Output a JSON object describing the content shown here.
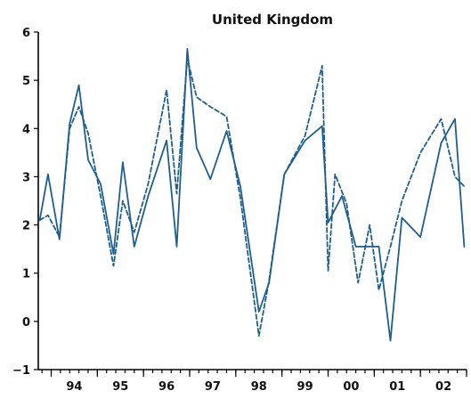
{
  "chart_data": {
    "type": "line",
    "title": "United Kingdom",
    "xlabel": "",
    "ylabel": "",
    "ylim": [
      -1,
      6
    ],
    "xlim": [
      1993.72,
      2003.0
    ],
    "yticks": [
      -1,
      0,
      1,
      2,
      3,
      4,
      5,
      6
    ],
    "ytick_labels": [
      "−1",
      "0",
      "1",
      "2",
      "3",
      "4",
      "5",
      "6"
    ],
    "xtick_labels": [
      {
        "label": "94",
        "x": 1994.5
      },
      {
        "label": "95",
        "x": 1995.5
      },
      {
        "label": "96",
        "x": 1996.5
      },
      {
        "label": "97",
        "x": 1997.5
      },
      {
        "label": "98",
        "x": 1998.5
      },
      {
        "label": "99",
        "x": 1999.5
      },
      {
        "label": "00",
        "x": 2000.5
      },
      {
        "label": "01",
        "x": 2001.5
      },
      {
        "label": "02",
        "x": 2002.5
      }
    ],
    "minor_ticks": {
      "start": 1993.8,
      "end": 2003.0,
      "step": 0.2
    },
    "major_ticks": [
      1994,
      1995,
      1996,
      1997,
      1998,
      1999,
      2000,
      2001,
      2002,
      2003
    ],
    "series": [
      {
        "style": "solid",
        "color": "#1f5f8e",
        "x": [
          1993.75,
          1993.93,
          1994.18,
          1994.4,
          1994.6,
          1994.8,
          1995.07,
          1995.35,
          1995.55,
          1995.8,
          1996.1,
          1996.5,
          1996.72,
          1996.95,
          1997.15,
          1997.45,
          1997.8,
          1998.1,
          1998.5,
          1998.72,
          1999.05,
          1999.5,
          1999.87,
          2000.0,
          2000.3,
          2000.6,
          2000.9,
          2001.1,
          2001.35,
          2001.6,
          2002.0,
          2002.45,
          2002.75,
          2002.95
        ],
        "y": [
          2.1,
          3.05,
          1.7,
          4.1,
          4.9,
          3.35,
          2.85,
          1.4,
          3.3,
          1.55,
          2.6,
          3.75,
          1.55,
          5.65,
          3.6,
          2.95,
          3.95,
          2.8,
          0.2,
          0.8,
          3.05,
          3.75,
          4.05,
          2.05,
          2.6,
          1.55,
          1.55,
          1.55,
          -0.4,
          2.15,
          1.75,
          3.7,
          4.2,
          1.55
        ]
      },
      {
        "style": "dashed",
        "color": "#1f5f8e",
        "x": [
          1993.75,
          1993.93,
          1994.18,
          1994.4,
          1994.6,
          1994.8,
          1995.07,
          1995.35,
          1995.55,
          1995.8,
          1996.1,
          1996.5,
          1996.72,
          1996.95,
          1997.15,
          1997.45,
          1997.8,
          1998.1,
          1998.5,
          1998.72,
          1999.05,
          1999.5,
          1999.87,
          2000.0,
          2000.15,
          2000.4,
          2000.65,
          2000.9,
          2001.1,
          2001.35,
          2001.6,
          2002.0,
          2002.45,
          2002.75,
          2002.95
        ],
        "y": [
          2.1,
          2.2,
          1.75,
          4.0,
          4.45,
          3.9,
          2.6,
          1.15,
          2.5,
          1.85,
          2.85,
          4.8,
          2.65,
          5.45,
          4.65,
          4.45,
          4.25,
          2.55,
          -0.3,
          0.85,
          3.05,
          3.85,
          5.3,
          1.05,
          3.05,
          2.45,
          0.8,
          2.0,
          0.65,
          1.55,
          2.5,
          3.5,
          4.2,
          3.0,
          2.8
        ]
      }
    ]
  }
}
